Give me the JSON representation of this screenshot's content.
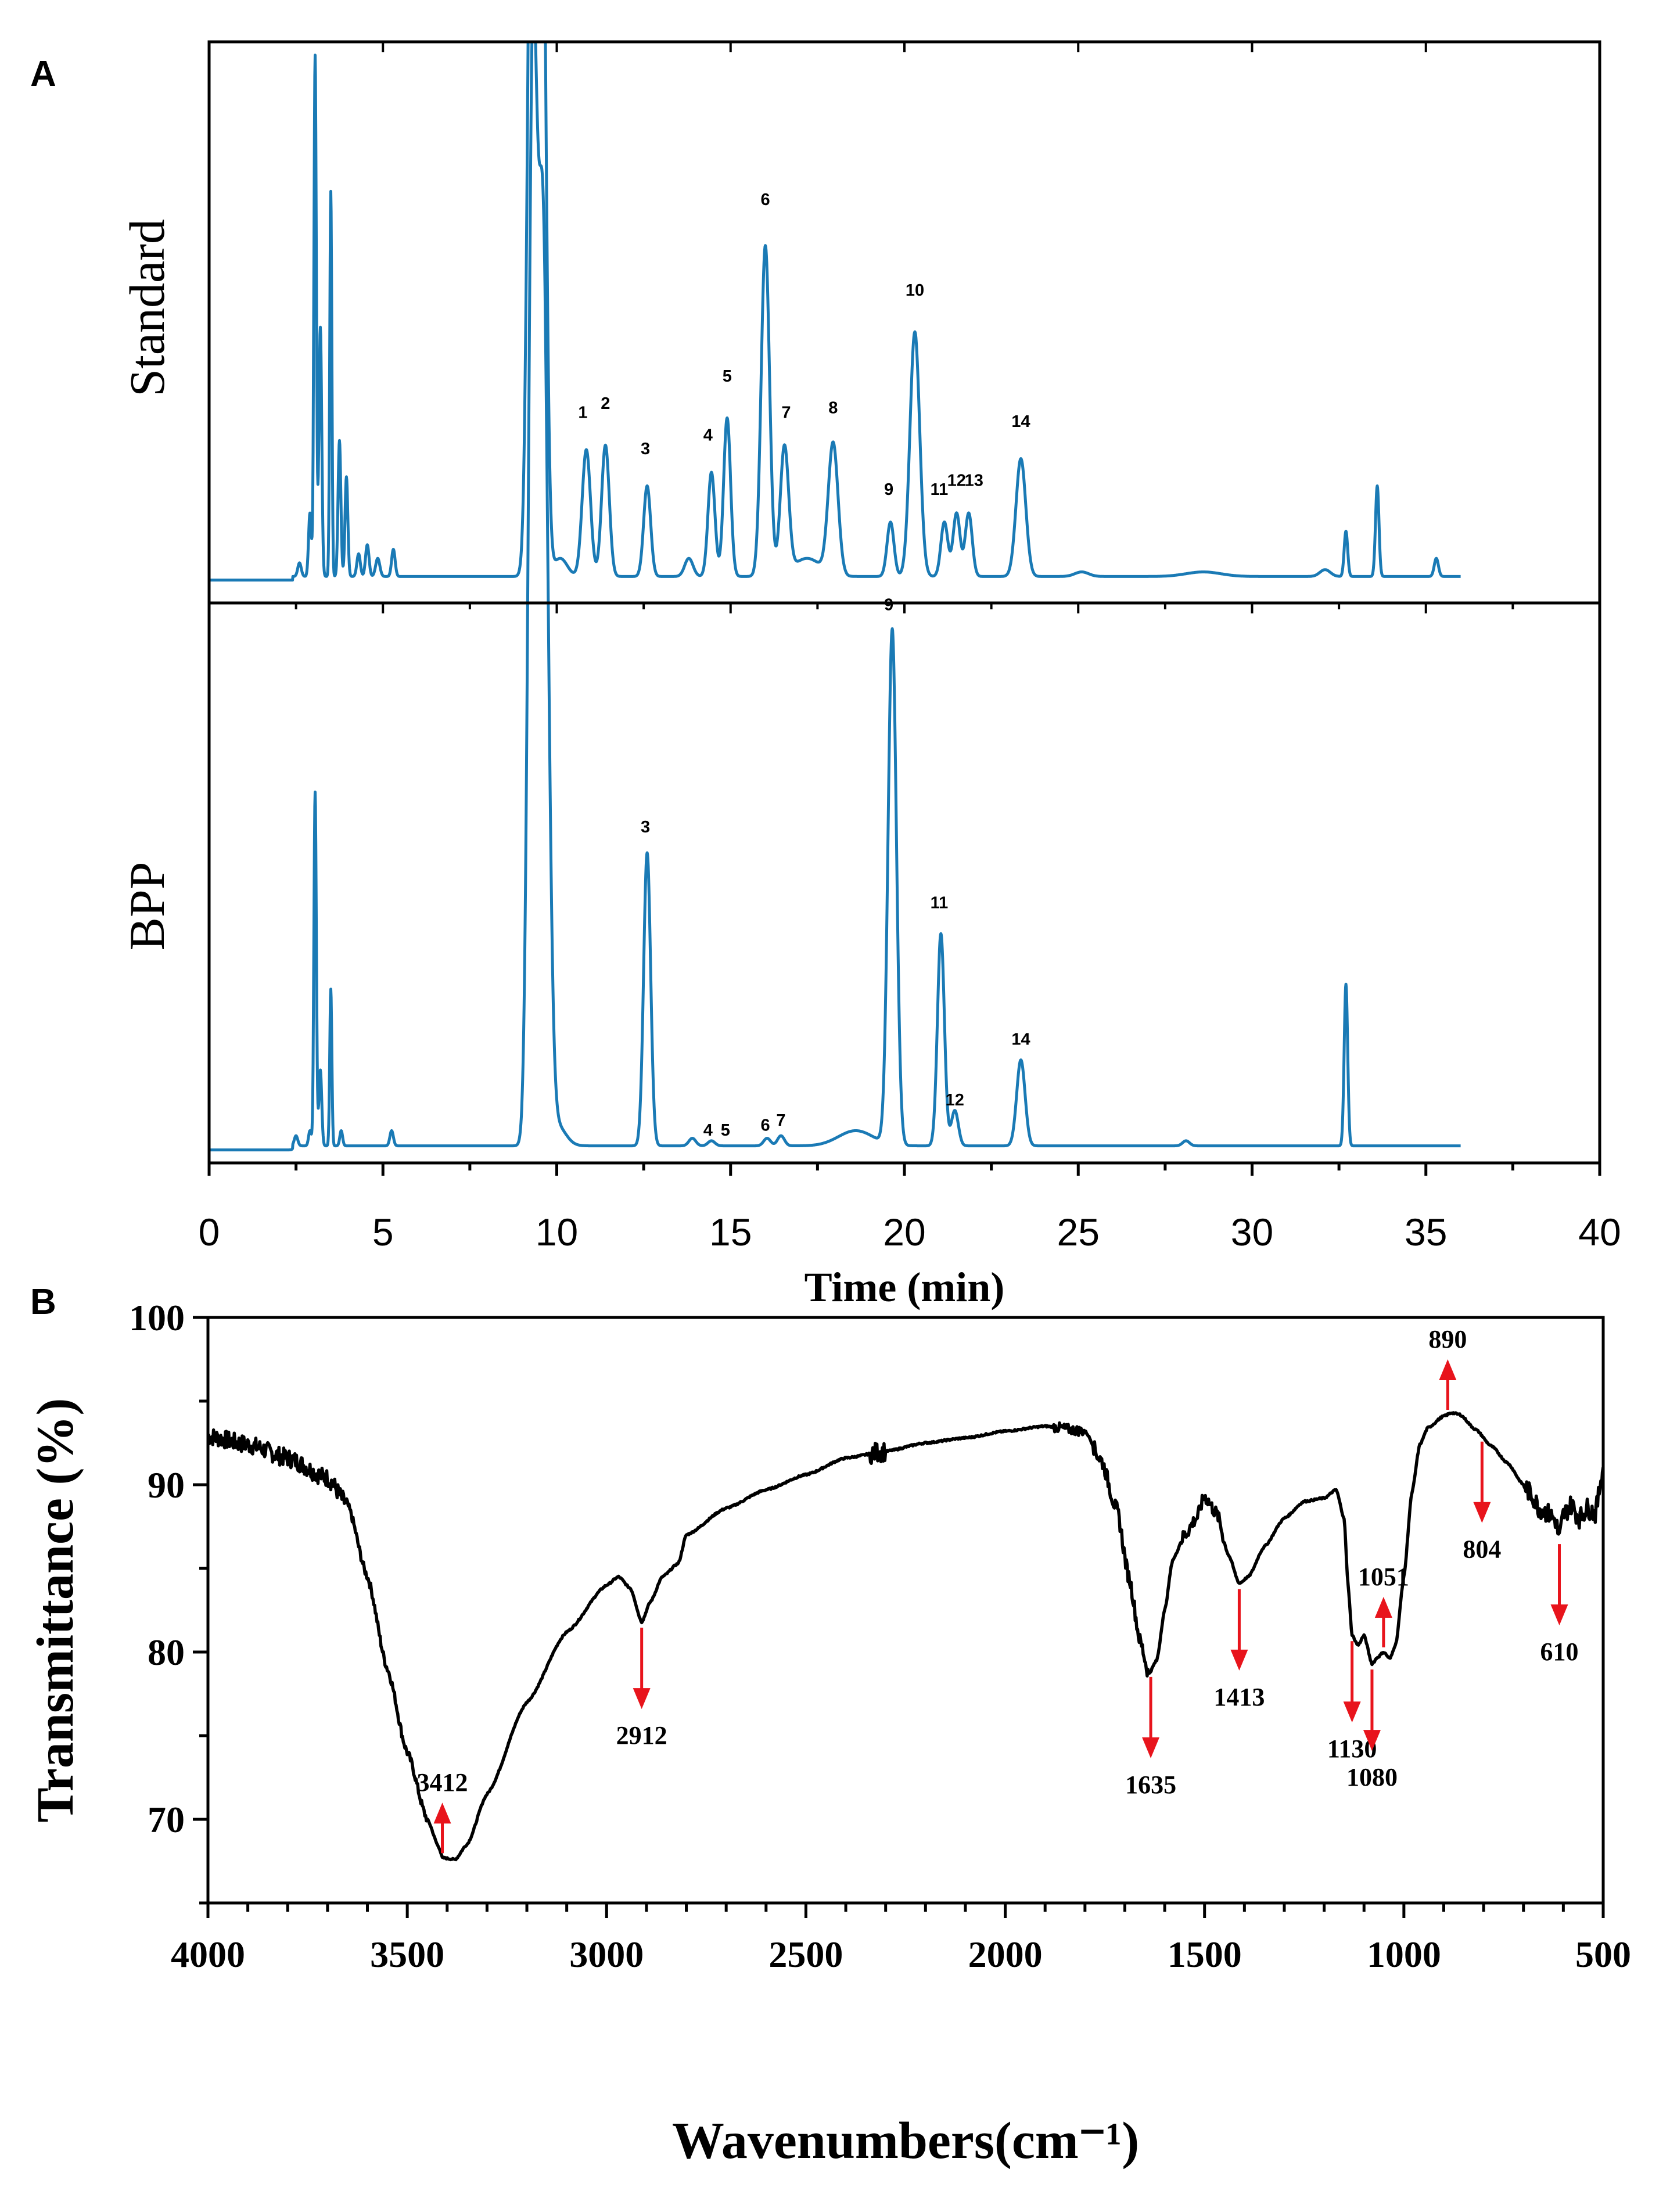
{
  "chart_data": [
    {
      "panel": "A",
      "type": "line",
      "title": "",
      "xlabel": "Time (min)",
      "xlim": [
        0,
        40
      ],
      "xticks": [
        0,
        5,
        10,
        15,
        20,
        25,
        30,
        35,
        40
      ],
      "line_color": "#1a7ab5",
      "series": [
        {
          "name": "Standard",
          "baseline": 0.02,
          "peaks": [
            {
              "t": 2.6,
              "h": 0.03,
              "w": 0.05
            },
            {
              "t": 2.9,
              "h": 0.14,
              "w": 0.04
            },
            {
              "t": 3.05,
              "h": 1.15,
              "w": 0.035
            },
            {
              "t": 3.2,
              "h": 0.55,
              "w": 0.04
            },
            {
              "t": 3.5,
              "h": 0.85,
              "w": 0.03
            },
            {
              "t": 3.75,
              "h": 0.3,
              "w": 0.04
            },
            {
              "t": 3.95,
              "h": 0.22,
              "w": 0.04
            },
            {
              "t": 4.3,
              "h": 0.05,
              "w": 0.05
            },
            {
              "t": 4.55,
              "h": 0.07,
              "w": 0.05
            },
            {
              "t": 4.85,
              "h": 0.04,
              "w": 0.06
            },
            {
              "t": 5.3,
              "h": 0.06,
              "w": 0.05
            },
            {
              "t": 9.3,
              "h": 2.0,
              "w": 0.12
            },
            {
              "t": 9.55,
              "h": 2.0,
              "w": 0.12
            },
            {
              "t": 10.1,
              "h": 0.04,
              "w": 0.2
            },
            {
              "t": 10.85,
              "h": 0.28,
              "w": 0.12
            },
            {
              "t": 11.4,
              "h": 0.29,
              "w": 0.11
            },
            {
              "t": 12.6,
              "h": 0.2,
              "w": 0.1
            },
            {
              "t": 13.8,
              "h": 0.04,
              "w": 0.12
            },
            {
              "t": 14.45,
              "h": 0.23,
              "w": 0.1
            },
            {
              "t": 14.9,
              "h": 0.35,
              "w": 0.1
            },
            {
              "t": 16.0,
              "h": 0.73,
              "w": 0.12
            },
            {
              "t": 16.55,
              "h": 0.28,
              "w": 0.12
            },
            {
              "t": 17.2,
              "h": 0.04,
              "w": 0.4
            },
            {
              "t": 17.95,
              "h": 0.29,
              "w": 0.14
            },
            {
              "t": 19.6,
              "h": 0.12,
              "w": 0.1
            },
            {
              "t": 20.3,
              "h": 0.54,
              "w": 0.14
            },
            {
              "t": 21.15,
              "h": 0.12,
              "w": 0.1
            },
            {
              "t": 21.5,
              "h": 0.14,
              "w": 0.1
            },
            {
              "t": 21.85,
              "h": 0.14,
              "w": 0.1
            },
            {
              "t": 23.35,
              "h": 0.26,
              "w": 0.14
            },
            {
              "t": 25.1,
              "h": 0.01,
              "w": 0.2
            },
            {
              "t": 28.6,
              "h": 0.01,
              "w": 0.5
            },
            {
              "t": 32.1,
              "h": 0.015,
              "w": 0.15
            },
            {
              "t": 32.7,
              "h": 0.1,
              "w": 0.05
            },
            {
              "t": 33.6,
              "h": 0.2,
              "w": 0.05
            },
            {
              "t": 35.3,
              "h": 0.04,
              "w": 0.06
            }
          ],
          "labels": [
            {
              "text": "1",
              "t": 10.75,
              "y": 0.37
            },
            {
              "text": "2",
              "t": 11.4,
              "y": 0.39
            },
            {
              "text": "3",
              "t": 12.55,
              "y": 0.29
            },
            {
              "text": "4",
              "t": 14.35,
              "y": 0.32
            },
            {
              "text": "5",
              "t": 14.9,
              "y": 0.45
            },
            {
              "text": "6",
              "t": 16.0,
              "y": 0.84
            },
            {
              "text": "7",
              "t": 16.6,
              "y": 0.37
            },
            {
              "text": "8",
              "t": 17.95,
              "y": 0.38
            },
            {
              "text": "9",
              "t": 19.55,
              "y": 0.2
            },
            {
              "text": "10",
              "t": 20.3,
              "y": 0.64
            },
            {
              "text": "11",
              "t": 21.0,
              "y": 0.2
            },
            {
              "text": "12",
              "t": 21.5,
              "y": 0.22
            },
            {
              "text": "13",
              "t": 22.0,
              "y": 0.22
            },
            {
              "text": "14",
              "t": 23.35,
              "y": 0.35
            }
          ]
        },
        {
          "name": "BPP",
          "baseline": 0.02,
          "peaks": [
            {
              "t": 2.5,
              "h": 0.02,
              "w": 0.05
            },
            {
              "t": 2.9,
              "h": 0.03,
              "w": 0.04
            },
            {
              "t": 3.05,
              "h": 0.7,
              "w": 0.035
            },
            {
              "t": 3.2,
              "h": 0.15,
              "w": 0.04
            },
            {
              "t": 3.5,
              "h": 0.31,
              "w": 0.03
            },
            {
              "t": 3.8,
              "h": 0.03,
              "w": 0.04
            },
            {
              "t": 5.25,
              "h": 0.03,
              "w": 0.05
            },
            {
              "t": 9.3,
              "h": 2.0,
              "w": 0.12
            },
            {
              "t": 9.6,
              "h": 1.8,
              "w": 0.15
            },
            {
              "t": 10.0,
              "h": 0.04,
              "w": 0.25
            },
            {
              "t": 12.6,
              "h": 0.58,
              "w": 0.1
            },
            {
              "t": 13.9,
              "h": 0.015,
              "w": 0.1
            },
            {
              "t": 14.45,
              "h": 0.01,
              "w": 0.1
            },
            {
              "t": 16.05,
              "h": 0.015,
              "w": 0.1
            },
            {
              "t": 16.45,
              "h": 0.02,
              "w": 0.1
            },
            {
              "t": 18.6,
              "h": 0.03,
              "w": 0.5
            },
            {
              "t": 19.65,
              "h": 1.02,
              "w": 0.12
            },
            {
              "t": 21.05,
              "h": 0.42,
              "w": 0.1
            },
            {
              "t": 21.45,
              "h": 0.07,
              "w": 0.1
            },
            {
              "t": 23.35,
              "h": 0.17,
              "w": 0.12
            },
            {
              "t": 28.1,
              "h": 0.01,
              "w": 0.1
            },
            {
              "t": 32.7,
              "h": 0.32,
              "w": 0.05
            }
          ],
          "labels": [
            {
              "text": "3",
              "t": 12.55,
              "y": 0.64
            },
            {
              "text": "4",
              "t": 14.35,
              "y": 0.04
            },
            {
              "text": "5",
              "t": 14.85,
              "y": 0.04
            },
            {
              "text": "6",
              "t": 16.0,
              "y": 0.05
            },
            {
              "text": "7",
              "t": 16.45,
              "y": 0.06
            },
            {
              "text": "9",
              "t": 19.55,
              "y": 1.08
            },
            {
              "text": "11",
              "t": 21.0,
              "y": 0.49
            },
            {
              "text": "12",
              "t": 21.45,
              "y": 0.1
            },
            {
              "text": "14",
              "t": 23.35,
              "y": 0.22
            }
          ]
        }
      ]
    },
    {
      "panel": "B",
      "type": "line",
      "title": "",
      "xlabel": "Wavenumbers(cm⁻¹)",
      "ylabel": "Transmittance (%)",
      "xlim": [
        4000,
        500
      ],
      "ylim": [
        65,
        100
      ],
      "xticks": [
        4000,
        3500,
        3000,
        2500,
        2000,
        1500,
        1000,
        500
      ],
      "yticks": [
        70,
        80,
        90,
        100
      ],
      "line_color": "#000000",
      "curve": [
        [
          4000,
          92.9
        ],
        [
          3900,
          92.4
        ],
        [
          3800,
          91.6
        ],
        [
          3700,
          90.4
        ],
        [
          3650,
          88.8
        ],
        [
          3600,
          84.5
        ],
        [
          3550,
          79.0
        ],
        [
          3500,
          74.0
        ],
        [
          3450,
          70.0
        ],
        [
          3420,
          68.3
        ],
        [
          3412,
          67.7
        ],
        [
          3380,
          67.6
        ],
        [
          3350,
          68.5
        ],
        [
          3300,
          71.5
        ],
        [
          3200,
          77.0
        ],
        [
          3100,
          81.2
        ],
        [
          3000,
          84.0
        ],
        [
          2970,
          84.5
        ],
        [
          2940,
          83.8
        ],
        [
          2912,
          81.8
        ],
        [
          2890,
          83.0
        ],
        [
          2860,
          84.5
        ],
        [
          2820,
          85.3
        ],
        [
          2800,
          87.0
        ],
        [
          2700,
          88.6
        ],
        [
          2600,
          89.7
        ],
        [
          2500,
          90.6
        ],
        [
          2400,
          91.6
        ],
        [
          2300,
          92.0
        ],
        [
          2200,
          92.5
        ],
        [
          2100,
          92.8
        ],
        [
          2000,
          93.2
        ],
        [
          1900,
          93.5
        ],
        [
          1800,
          93.2
        ],
        [
          1760,
          91.5
        ],
        [
          1720,
          88.5
        ],
        [
          1690,
          84.5
        ],
        [
          1660,
          80.5
        ],
        [
          1640,
          78.7
        ],
        [
          1620,
          79.5
        ],
        [
          1600,
          82.5
        ],
        [
          1580,
          85.5
        ],
        [
          1550,
          87.0
        ],
        [
          1520,
          88.0
        ],
        [
          1500,
          89.3
        ],
        [
          1470,
          88.3
        ],
        [
          1440,
          85.8
        ],
        [
          1413,
          84.1
        ],
        [
          1390,
          84.5
        ],
        [
          1350,
          86.3
        ],
        [
          1300,
          88.0
        ],
        [
          1250,
          89.0
        ],
        [
          1200,
          89.2
        ],
        [
          1170,
          89.7
        ],
        [
          1150,
          88.0
        ],
        [
          1140,
          84.0
        ],
        [
          1130,
          81.0
        ],
        [
          1115,
          80.4
        ],
        [
          1100,
          81.0
        ],
        [
          1080,
          79.3
        ],
        [
          1065,
          79.7
        ],
        [
          1051,
          80.0
        ],
        [
          1035,
          79.6
        ],
        [
          1020,
          80.5
        ],
        [
          1000,
          84.5
        ],
        [
          980,
          89.5
        ],
        [
          960,
          92.4
        ],
        [
          940,
          93.4
        ],
        [
          900,
          94.1
        ],
        [
          880,
          94.3
        ],
        [
          860,
          94.2
        ],
        [
          820,
          93.3
        ],
        [
          780,
          92.3
        ],
        [
          740,
          91.3
        ],
        [
          700,
          90.0
        ],
        [
          680,
          89.4
        ],
        [
          660,
          88.6
        ],
        [
          640,
          88.3
        ],
        [
          620,
          87.9
        ],
        [
          610,
          86.8
        ],
        [
          600,
          88.2
        ],
        [
          580,
          88.8
        ],
        [
          560,
          88.0
        ],
        [
          540,
          88.6
        ],
        [
          520,
          88.3
        ],
        [
          500,
          91.0
        ]
      ],
      "annotations": [
        {
          "text": "3412",
          "x": 3412,
          "dir": "up"
        },
        {
          "text": "2912",
          "x": 2912,
          "dir": "down"
        },
        {
          "text": "1635",
          "x": 1635,
          "dir": "down"
        },
        {
          "text": "1413",
          "x": 1413,
          "dir": "down"
        },
        {
          "text": "1130",
          "x": 1130,
          "dir": "down"
        },
        {
          "text": "1080",
          "x": 1080,
          "dir": "down"
        },
        {
          "text": "1051",
          "x": 1051,
          "dir": "up"
        },
        {
          "text": "890",
          "x": 890,
          "dir": "up"
        },
        {
          "text": "804",
          "x": 804,
          "dir": "down"
        },
        {
          "text": "610",
          "x": 610,
          "dir": "down"
        }
      ],
      "arrow_color": "#e8141c"
    }
  ]
}
